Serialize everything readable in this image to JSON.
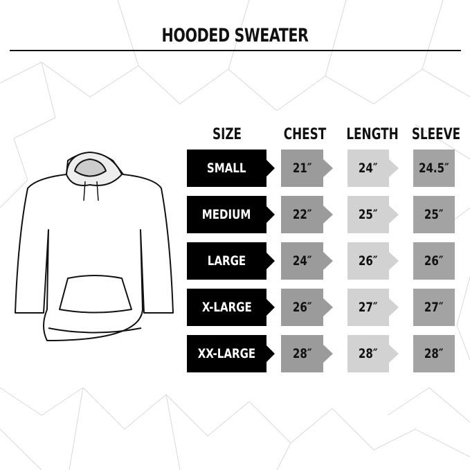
{
  "title": "HOODED SWEATER",
  "headers": {
    "size": "SIZE",
    "chest": "CHEST",
    "length": "LENGTH",
    "sleeve": "SLEEVE"
  },
  "rows": [
    {
      "size": "SMALL",
      "chest": "21″",
      "length": "24″",
      "sleeve": "24.5″"
    },
    {
      "size": "MEDIUM",
      "chest": "22″",
      "length": "25″",
      "sleeve": "25″"
    },
    {
      "size": "LARGE",
      "chest": "24″",
      "length": "26″",
      "sleeve": "26″"
    },
    {
      "size": "X-LARGE",
      "chest": "26″",
      "length": "27″",
      "sleeve": "27″"
    },
    {
      "size": "XX-LARGE",
      "chest": "28″",
      "length": "28″",
      "sleeve": "28″"
    }
  ],
  "colors": {
    "size_bg": "#000000",
    "chest_bg": "#9b9b9b",
    "length_bg": "#d2d2d2",
    "sleeve_bg": "#a3a3a3"
  }
}
